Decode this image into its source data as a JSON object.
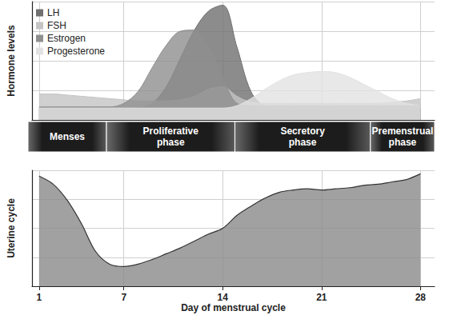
{
  "chart_data": [
    {
      "type": "area",
      "ylabel": "Hormone levels",
      "x": [
        1,
        2,
        3,
        4,
        5,
        6,
        7,
        8,
        9,
        10,
        11,
        12,
        13,
        14,
        15,
        16,
        17,
        18,
        19,
        20,
        21,
        22,
        23,
        24,
        25,
        26,
        27,
        28
      ],
      "xlim": [
        0.5,
        29
      ],
      "xticks": [
        1,
        7,
        14,
        21,
        28
      ],
      "ylim": [
        0,
        100
      ],
      "yticks": [
        0,
        25,
        50,
        75,
        100
      ],
      "grid": true,
      "tick_labels": false,
      "legend": "top-left",
      "series": [
        {
          "name": "LH",
          "color": "#6f6f6f",
          "values": [
            9,
            9,
            9,
            9,
            9,
            9,
            9,
            10,
            14,
            28,
            52,
            76,
            92,
            97,
            62,
            24,
            11,
            9,
            9,
            9,
            9,
            9,
            9,
            9,
            9,
            9,
            9,
            9
          ]
        },
        {
          "name": "FSH",
          "color": "#c4c4c4",
          "values": [
            22,
            22,
            21,
            20,
            19,
            18,
            17,
            16,
            16,
            16,
            17,
            20,
            26,
            28,
            20,
            15,
            14,
            14,
            14,
            14,
            14,
            14,
            14,
            14,
            14,
            15,
            16,
            18
          ]
        },
        {
          "name": "Estrogen",
          "color": "#8f8f8f",
          "values": [
            11,
            11,
            11,
            11,
            11,
            11,
            14,
            24,
            44,
            63,
            75,
            76,
            62,
            36,
            14,
            12,
            12,
            12,
            12,
            12,
            12,
            12,
            12,
            12,
            12,
            12,
            12,
            12
          ]
        },
        {
          "name": "Progesterone",
          "color": "#e2e2e2",
          "values": [
            10,
            10,
            10,
            10,
            10,
            10,
            10,
            10,
            10,
            10,
            10,
            10,
            10,
            10,
            12,
            18,
            26,
            33,
            38,
            40,
            41,
            40,
            36,
            30,
            24,
            18,
            14,
            12
          ]
        }
      ],
      "phases": [
        {
          "label": "Menses",
          "start": 0.5,
          "end": 6
        },
        {
          "label": "Proliferative phase",
          "start": 6,
          "end": 15
        },
        {
          "label": "Secretory phase",
          "start": 15,
          "end": 24.5
        },
        {
          "label": "Premenstrual phase",
          "start": 24.5,
          "end": 29
        }
      ]
    },
    {
      "type": "area",
      "ylabel": "Uterine cycle",
      "xlabel": "Day of menstrual cycle",
      "x": [
        1,
        2,
        3,
        4,
        5,
        6,
        7,
        8,
        9,
        10,
        11,
        12,
        13,
        14,
        15,
        16,
        17,
        18,
        19,
        20,
        21,
        22,
        23,
        24,
        25,
        26,
        27,
        28
      ],
      "xlim": [
        0.5,
        29
      ],
      "xticks": [
        1,
        7,
        14,
        21,
        28
      ],
      "ylim": [
        0,
        100
      ],
      "yticks": [
        0,
        25,
        50,
        75,
        100
      ],
      "grid": true,
      "tick_labels": "x",
      "color": "#8a8a8a",
      "values": [
        95,
        88,
        74,
        54,
        30,
        19,
        17,
        19,
        23,
        28,
        33,
        39,
        45,
        50,
        61,
        69,
        76,
        81,
        83,
        84,
        83,
        84,
        85,
        87,
        88,
        90,
        92,
        97
      ]
    }
  ]
}
